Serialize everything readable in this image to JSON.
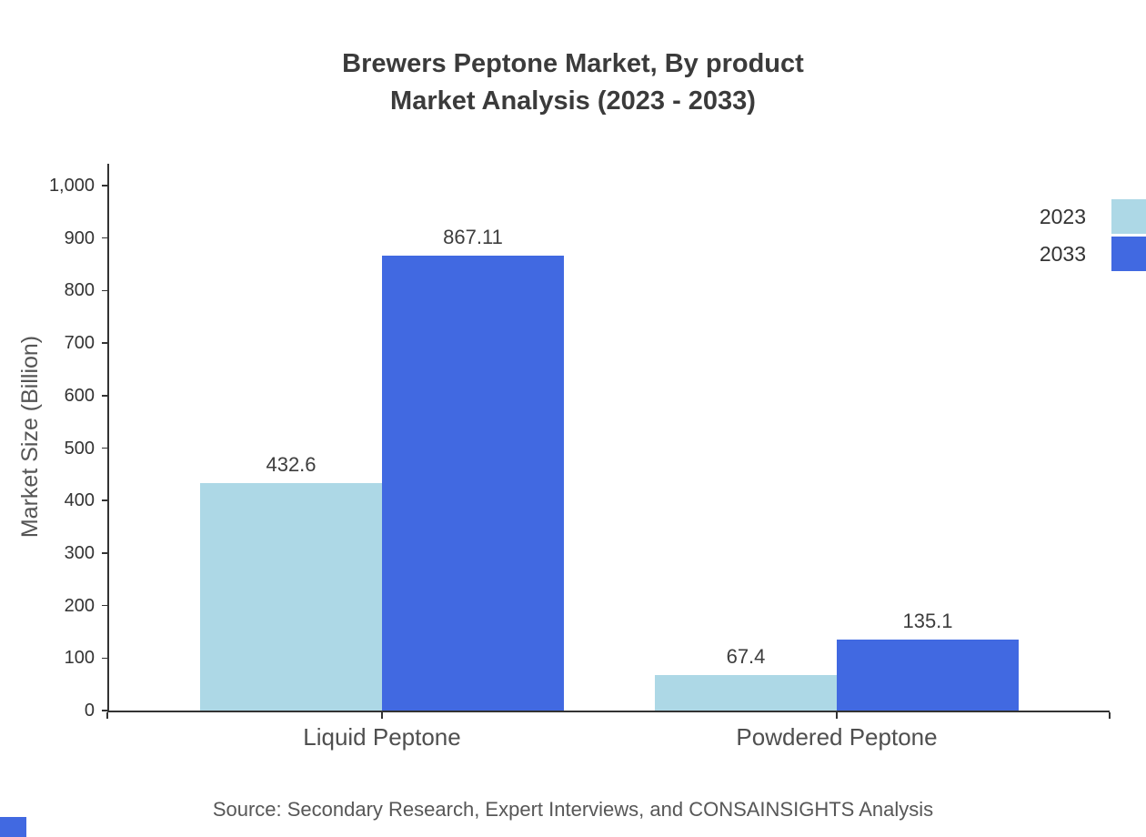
{
  "title": {
    "line1": "Brewers Peptone Market, By product",
    "line2": "Market Analysis (2023 - 2033)"
  },
  "chart_data": {
    "type": "bar",
    "title": "Brewers Peptone Market, By product Market Analysis (2023 - 2033)",
    "categories": [
      "Liquid Peptone",
      "Powdered Peptone"
    ],
    "series": [
      {
        "name": "2023",
        "color": "#ADD8E6",
        "values": [
          432.6,
          67.4
        ],
        "labels": [
          "432.6",
          "67.4"
        ]
      },
      {
        "name": "2033",
        "color": "#4169E1",
        "values": [
          867.11,
          135.1
        ],
        "labels": [
          "867.11",
          "135.1"
        ]
      }
    ],
    "xlabel": "",
    "ylabel": "Market Size (Billion)",
    "ylim": [
      0,
      1000
    ],
    "ytick_step": 100,
    "ytick_labels": [
      "0",
      "100",
      "200",
      "300",
      "400",
      "500",
      "600",
      "700",
      "800",
      "900",
      "1,000"
    ],
    "grid": false,
    "legend_position": "top-right"
  },
  "source": "Source: Secondary Research, Expert Interviews, and CONSAINSIGHTS Analysis",
  "colors": {
    "series_2023": "#ADD8E6",
    "series_2033": "#4169E1",
    "axis": "#333333",
    "title_text": "#3b3b3b",
    "muted_text": "#555555"
  }
}
